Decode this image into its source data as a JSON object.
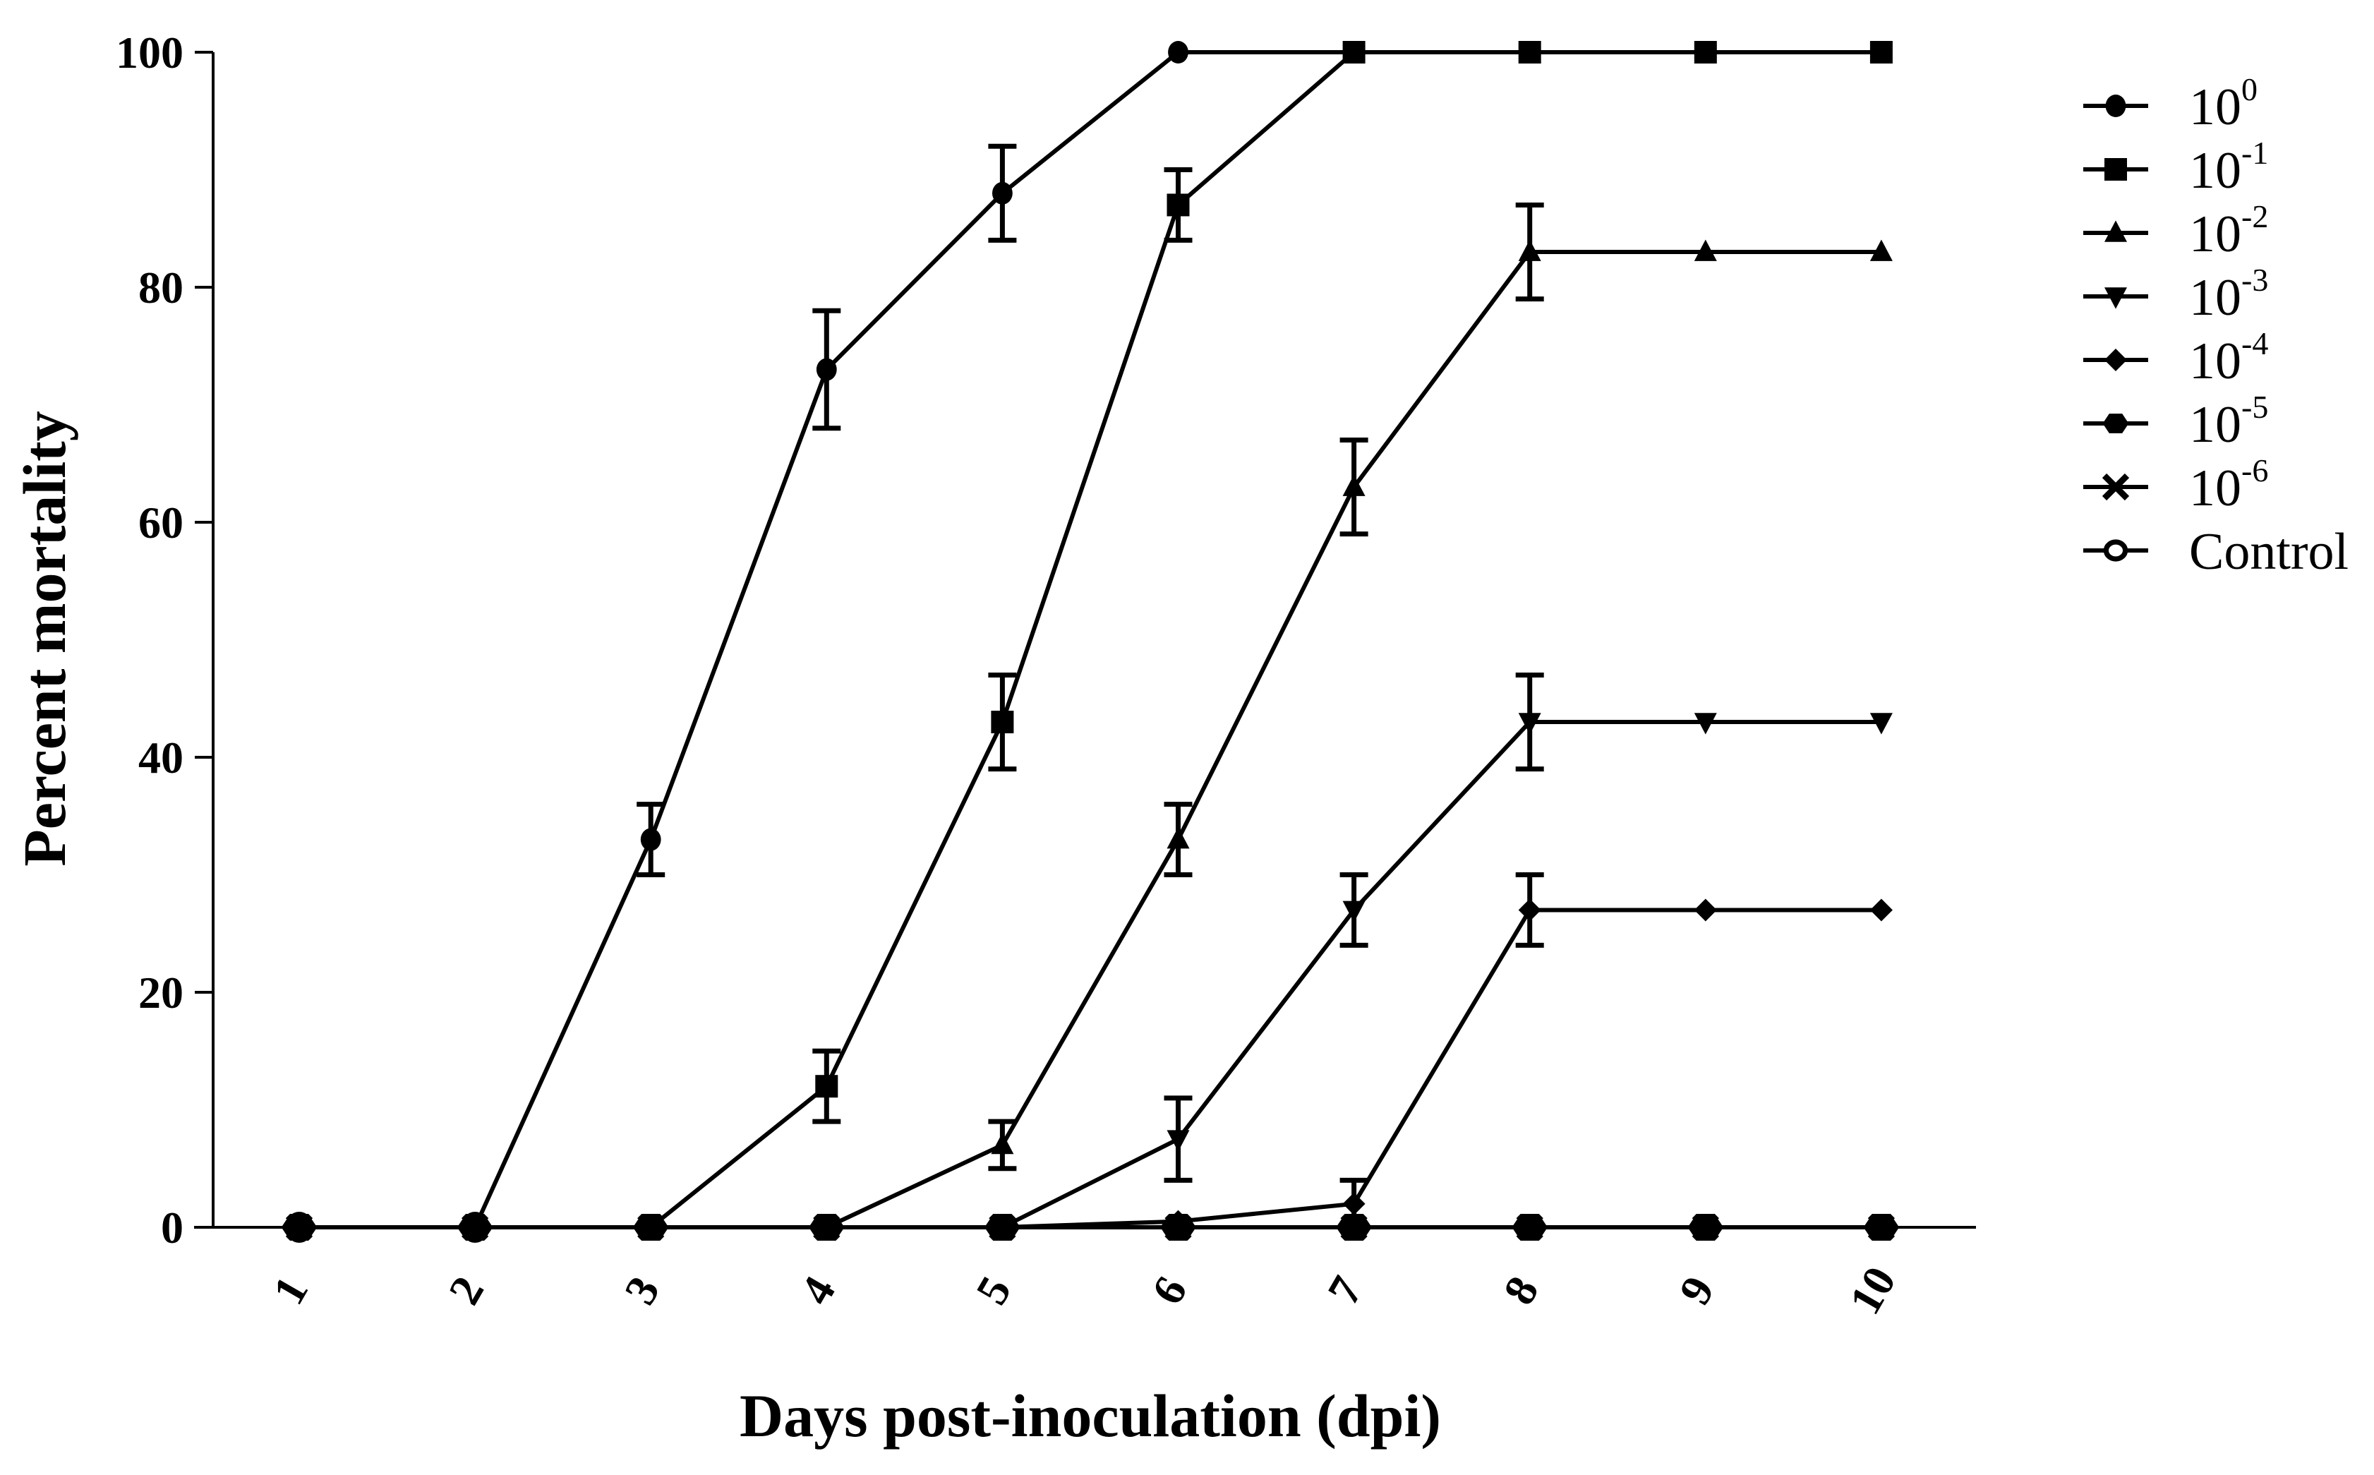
{
  "chart_data": {
    "type": "line",
    "title": "",
    "xlabel": "Days post-inoculation (dpi)",
    "ylabel": "Percent mortality",
    "x": [
      1,
      2,
      3,
      4,
      5,
      6,
      7,
      8,
      9,
      10
    ],
    "x_tick_labels": [
      "1",
      "2",
      "3",
      "4",
      "5",
      "6",
      "7",
      "8",
      "9",
      "10"
    ],
    "y_ticks": [
      0,
      20,
      40,
      60,
      80,
      100
    ],
    "y_tick_labels": [
      "0",
      "20",
      "40",
      "60",
      "80",
      "100"
    ],
    "ylim": [
      0,
      100
    ],
    "grid": false,
    "legend_position": "right",
    "error_bars": true,
    "series": [
      {
        "name": "10^0",
        "base": "10",
        "exp": "0",
        "marker": "circle",
        "values": [
          0,
          0,
          33,
          73,
          88,
          100,
          100,
          100,
          100,
          100
        ],
        "errors": [
          0,
          0,
          3,
          5,
          4,
          0,
          0,
          0,
          0,
          0
        ]
      },
      {
        "name": "10^-1",
        "base": "10",
        "exp": "-1",
        "marker": "square",
        "values": [
          0,
          0,
          0,
          12,
          43,
          87,
          100,
          100,
          100,
          100
        ],
        "errors": [
          0,
          0,
          0,
          3,
          4,
          3,
          0,
          0,
          0,
          0
        ]
      },
      {
        "name": "10^-2",
        "base": "10",
        "exp": "-2",
        "marker": "triangle-up",
        "values": [
          0,
          0,
          0,
          0,
          7,
          33,
          63,
          83,
          83,
          83
        ],
        "errors": [
          0,
          0,
          0,
          0,
          2,
          3,
          4,
          4,
          0,
          0
        ]
      },
      {
        "name": "10^-3",
        "base": "10",
        "exp": "-3",
        "marker": "triangle-down",
        "values": [
          0,
          0,
          0,
          0,
          0,
          7.5,
          27,
          43,
          43,
          43
        ],
        "errors": [
          0,
          0,
          0,
          0,
          0,
          3.5,
          3,
          4,
          0,
          0
        ]
      },
      {
        "name": "10^-4",
        "base": "10",
        "exp": "-4",
        "marker": "diamond",
        "values": [
          0,
          0,
          0,
          0,
          0,
          0.5,
          2,
          27,
          27,
          27
        ],
        "errors": [
          0,
          0,
          0,
          0,
          0,
          0,
          2,
          3,
          0,
          0
        ]
      },
      {
        "name": "10^-5",
        "base": "10",
        "exp": "-5",
        "marker": "hexagon",
        "values": [
          0,
          0,
          0,
          0,
          0,
          0,
          0,
          0,
          0,
          0
        ],
        "errors": [
          0,
          0,
          0,
          0,
          0,
          0,
          0,
          0,
          0,
          0
        ]
      },
      {
        "name": "10^-6",
        "base": "10",
        "exp": "-6",
        "marker": "cross",
        "values": [
          0,
          0,
          0,
          0,
          0,
          0,
          0,
          0,
          0,
          0
        ],
        "errors": [
          0,
          0,
          0,
          0,
          0,
          0,
          0,
          0,
          0,
          0
        ]
      },
      {
        "name": "Control",
        "base": "Control",
        "exp": "",
        "marker": "open-circle",
        "values": [
          0,
          0,
          0,
          0,
          0,
          0,
          0,
          0,
          0,
          0
        ],
        "errors": [
          0,
          0,
          0,
          0,
          0,
          0,
          0,
          0,
          0,
          0
        ]
      }
    ]
  },
  "colors": {
    "ink": "#000000",
    "background": "#ffffff"
  }
}
